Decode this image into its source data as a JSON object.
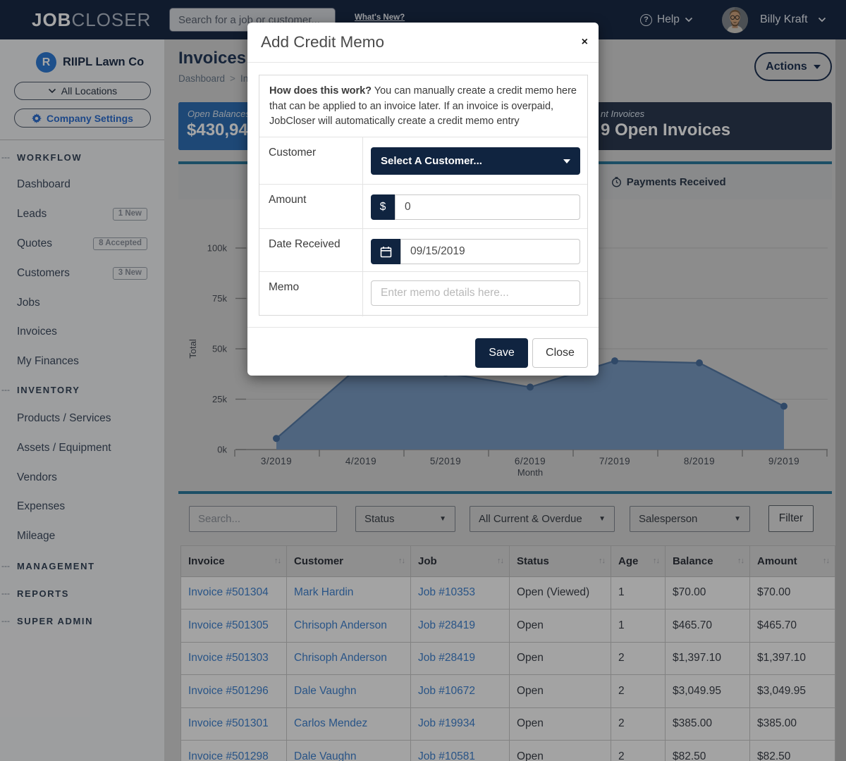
{
  "colors": {
    "navbar_bg": "#1a2a45",
    "navy": "#102440",
    "brand_blue": "#2e7cd6",
    "settings_blue": "#2d6fd2",
    "tile_blue": "#2f6fb5",
    "teal": "#2b7a9d",
    "link": "#3f82cf",
    "chart_fill": "#7a9cc4",
    "chart_line": "#567ca8",
    "chart_dot": "#4a70a0"
  },
  "navbar": {
    "logo_bold": "JOB",
    "logo_light": "CLOSER",
    "search_placeholder": "Search for a job or customer...",
    "whats_new": "What's New?",
    "help_label": "Help",
    "user_name": "Billy Kraft"
  },
  "sidebar": {
    "company_initial": "R",
    "company_name": "RIIPL Lawn Co",
    "locations_label": "All Locations",
    "settings_label": "Company Settings",
    "sections": [
      {
        "label": "WORKFLOW",
        "items": [
          {
            "label": "Dashboard"
          },
          {
            "label": "Leads",
            "badge": "1 New"
          },
          {
            "label": "Quotes",
            "badge": "8 Accepted"
          },
          {
            "label": "Customers",
            "badge": "3 New"
          },
          {
            "label": "Jobs"
          },
          {
            "label": "Invoices"
          },
          {
            "label": "My Finances"
          }
        ]
      },
      {
        "label": "INVENTORY",
        "items": [
          {
            "label": "Products / Services"
          },
          {
            "label": "Assets / Equipment"
          },
          {
            "label": "Vendors"
          },
          {
            "label": "Expenses"
          },
          {
            "label": "Mileage"
          }
        ]
      },
      {
        "label": "MANAGEMENT",
        "items": []
      },
      {
        "label": "REPORTS",
        "items": []
      },
      {
        "label": "SUPER ADMIN",
        "items": []
      }
    ]
  },
  "page": {
    "title": "Invoices",
    "breadcrumb_home": "Dashboard",
    "breadcrumb_sep": ">",
    "breadcrumb_current": "In",
    "actions_label": "Actions"
  },
  "stats": {
    "open_label": "Open Balances",
    "open_value": "$430,94",
    "right_label": "nt Invoices",
    "right_value": "9 Open Invoices"
  },
  "chart_data": {
    "type": "area",
    "tab_label": "Payments Received",
    "x": [
      "3/2019",
      "4/2019",
      "5/2019",
      "6/2019",
      "7/2019",
      "8/2019",
      "9/2019"
    ],
    "values": [
      5500,
      42000,
      38000,
      31000,
      44000,
      43000,
      21500
    ],
    "xlabel": "Month",
    "ylabel": "Total",
    "ylim": [
      0,
      124000
    ],
    "yticks": [
      0,
      25000,
      50000,
      75000,
      100000
    ],
    "ytick_labels": [
      "0k",
      "25k",
      "50k",
      "75k",
      "100k"
    ],
    "grid": true,
    "legend_position": "none"
  },
  "filters": {
    "search_placeholder": "Search...",
    "status_label": "Status",
    "range_label": "All Current & Overdue",
    "salesperson_label": "Salesperson",
    "filter_label": "Filter"
  },
  "table": {
    "columns": [
      "Invoice",
      "Customer",
      "Job",
      "Status",
      "Age",
      "Balance",
      "Amount"
    ],
    "sort_icon": "↑↓",
    "rows": [
      [
        "Invoice #501304",
        "Mark Hardin",
        "Job #10353",
        "Open (Viewed)",
        "1",
        "$70.00",
        "$70.00"
      ],
      [
        "Invoice #501305",
        "Chrisoph Anderson",
        "Job #28419",
        "Open",
        "1",
        "$465.70",
        "$465.70"
      ],
      [
        "Invoice #501303",
        "Chrisoph Anderson",
        "Job #28419",
        "Open",
        "2",
        "$1,397.10",
        "$1,397.10"
      ],
      [
        "Invoice #501296",
        "Dale Vaughn",
        "Job #10672",
        "Open",
        "2",
        "$3,049.95",
        "$3,049.95"
      ],
      [
        "Invoice #501301",
        "Carlos Mendez",
        "Job #19934",
        "Open",
        "2",
        "$385.00",
        "$385.00"
      ],
      [
        "Invoice #501298",
        "Dale Vaughn",
        "Job #10581",
        "Open",
        "2",
        "$82.50",
        "$82.50"
      ]
    ]
  },
  "modal": {
    "title": "Add Credit Memo",
    "close_icon": "×",
    "info_bold": "How does this work?",
    "info_text": " You can manually create a credit memo here that can be applied to an invoice later. If an invoice is overpaid, JobCloser will automatically create a credit memo entry",
    "customer_label": "Customer",
    "customer_value": "Select A Customer...",
    "amount_label": "Amount",
    "amount_prefix": "$",
    "amount_value": "0",
    "date_label": "Date Received",
    "date_value": "09/15/2019",
    "memo_label": "Memo",
    "memo_placeholder": "Enter memo details here...",
    "save_label": "Save",
    "close_label": "Close"
  }
}
